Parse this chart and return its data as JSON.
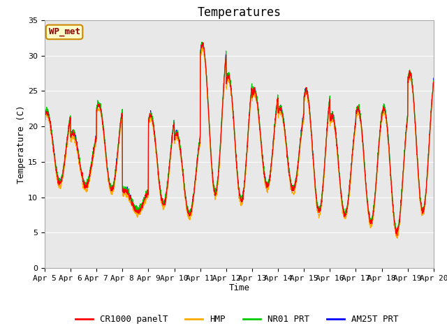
{
  "title": "Temperatures",
  "xlabel": "Time",
  "ylabel": "Temperature (C)",
  "ylim": [
    0,
    35
  ],
  "x_tick_labels": [
    "Apr 5",
    "Apr 6",
    "Apr 7",
    "Apr 8",
    "Apr 9",
    "Apr 10",
    "Apr 11",
    "Apr 12",
    "Apr 13",
    "Apr 14",
    "Apr 15",
    "Apr 16",
    "Apr 17",
    "Apr 18",
    "Apr 19",
    "Apr 20"
  ],
  "legend_labels": [
    "CR1000 panelT",
    "HMP",
    "NR01 PRT",
    "AM25T PRT"
  ],
  "series_colors": [
    "#ff0000",
    "#ffaa00",
    "#00cc00",
    "#0000ff"
  ],
  "annotation_text": "WP_met",
  "annotation_bg": "#ffffcc",
  "annotation_border": "#cc8800",
  "annotation_text_color": "#880000",
  "bg_color": "#e8e8e8",
  "title_fontsize": 12,
  "axis_fontsize": 9,
  "tick_fontsize": 8,
  "legend_fontsize": 9,
  "day_mins": [
    12.0,
    11.5,
    11.0,
    8.0,
    9.0,
    7.5,
    10.5,
    9.5,
    11.5,
    11.0,
    8.0,
    7.5,
    6.5,
    5.0,
    8.0
  ],
  "day_maxs": [
    22.0,
    19.0,
    23.0,
    11.0,
    21.5,
    19.0,
    31.5,
    27.0,
    25.0,
    22.5,
    25.0,
    21.5,
    22.5,
    22.5,
    27.5
  ],
  "points_per_day": 144,
  "noise_scale": 0.2,
  "n_days": 15
}
